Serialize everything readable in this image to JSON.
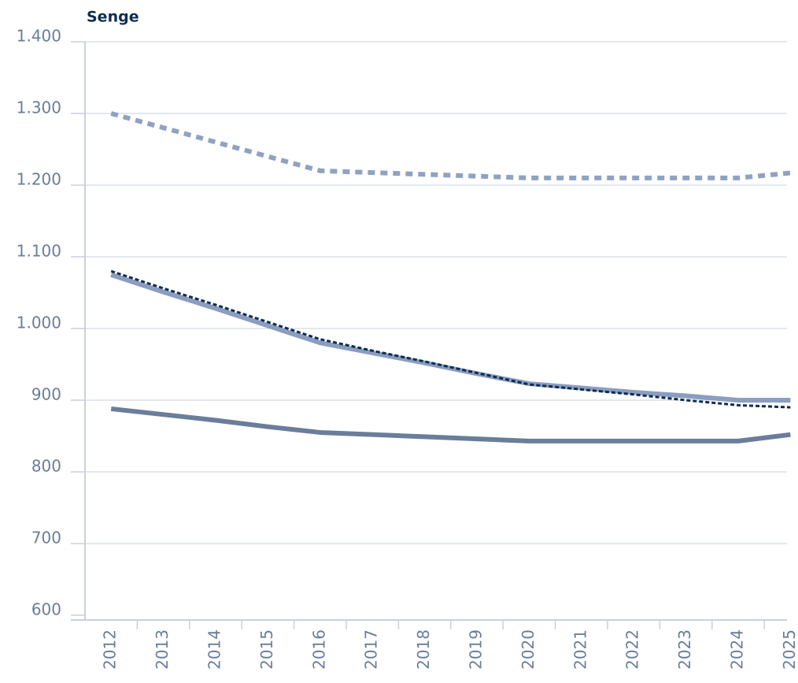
{
  "chart_data": {
    "type": "line",
    "ylabel": "Senge",
    "categories": [
      "2012",
      "2013",
      "2014",
      "2015",
      "2016",
      "2017",
      "2018",
      "2019",
      "2020",
      "2021",
      "2022",
      "2023",
      "2024",
      "2025"
    ],
    "series": [
      {
        "color": "#8fa2c1",
        "style": "dotted",
        "values": [
          1300,
          1280,
          1260,
          1240,
          1220,
          1217.5,
          1215,
          1212.5,
          1210,
          1210,
          1210,
          1210,
          1210,
          1217
        ]
      },
      {
        "color": "#8b9dc0",
        "style": "solid",
        "values": [
          1075,
          1051,
          1028,
          1004,
          980,
          966,
          952,
          937,
          923,
          917,
          911,
          906,
          900,
          900
        ]
      },
      {
        "color": "#0d2d4f",
        "style": "dashed",
        "values": [
          1080,
          1056,
          1033,
          1009,
          985,
          969,
          954,
          938,
          922,
          915,
          908,
          900,
          893,
          890
        ]
      },
      {
        "color": "#6a7d9a",
        "style": "solid",
        "values": [
          888,
          880,
          872,
          863,
          855,
          852,
          849,
          846,
          843,
          843,
          843,
          843,
          843,
          852
        ]
      }
    ],
    "ylim": [
      600,
      1400
    ],
    "yticks": [
      {
        "value": 600,
        "label": "600"
      },
      {
        "value": 700,
        "label": "700"
      },
      {
        "value": 800,
        "label": "800"
      },
      {
        "value": 900,
        "label": "900"
      },
      {
        "value": 1000,
        "label": "1.000"
      },
      {
        "value": 1100,
        "label": "1.100"
      },
      {
        "value": 1200,
        "label": "1.200"
      },
      {
        "value": 1300,
        "label": "1.300"
      },
      {
        "value": 1400,
        "label": "1.400"
      }
    ],
    "grid": true
  }
}
